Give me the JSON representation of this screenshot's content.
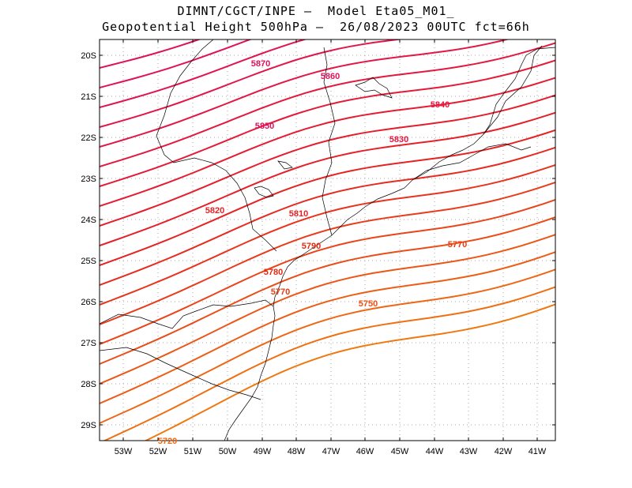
{
  "title_line1": "DIMNT/CGCT/INPE –  Model Eta05_M01_",
  "title_line2": "Geopotential Height 500hPa –  26/08/2023 00UTC fct=66h",
  "lat_ticks": [
    "20S",
    "21S",
    "22S",
    "23S",
    "24S",
    "25S",
    "26S",
    "27S",
    "28S",
    "29S"
  ],
  "lon_ticks": [
    "53W",
    "52W",
    "51W",
    "50W",
    "49W",
    "48W",
    "47W",
    "46W",
    "45W",
    "44W",
    "43W",
    "42W",
    "41W"
  ],
  "contour_labels": [
    {
      "text": "5870",
      "color": "#e0105a"
    },
    {
      "text": "5860",
      "color": "#e0105a"
    },
    {
      "text": "5850",
      "color": "#e0105a"
    },
    {
      "text": "5840",
      "color": "#e61540"
    },
    {
      "text": "5830",
      "color": "#e61540"
    },
    {
      "text": "5820",
      "color": "#e62222"
    },
    {
      "text": "5810",
      "color": "#e62222"
    },
    {
      "text": "5790",
      "color": "#e62a10"
    },
    {
      "text": "5780",
      "color": "#e62a10"
    },
    {
      "text": "5770",
      "color": "#ea3c10"
    },
    {
      "text": "5770",
      "color": "#ea3c10"
    },
    {
      "text": "5750",
      "color": "#ee5010"
    },
    {
      "text": "5720",
      "color": "#f06812"
    }
  ],
  "colors": {
    "high": "#e0105a",
    "mid": "#e62222",
    "low": "#f07810",
    "grid": "#aaaaaa",
    "coast": "#000000"
  }
}
